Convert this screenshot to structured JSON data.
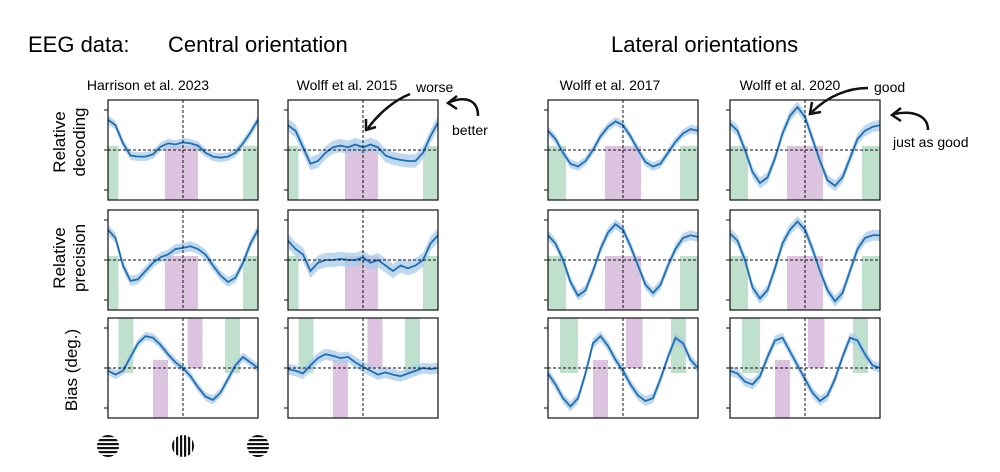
{
  "header": {
    "eeg_label": "EEG data:",
    "central_title": "Central orientation",
    "lateral_title": "Lateral orientations"
  },
  "row_labels": [
    [
      "Relative",
      "decoding"
    ],
    [
      "Relative",
      "precision"
    ],
    [
      "Bias (deg.)"
    ]
  ],
  "annotations": {
    "worse": "worse",
    "better": "better",
    "good": "good",
    "just_as_good": "just as good"
  },
  "colors": {
    "line": "#1f6fb4",
    "band": "#a9cbe8",
    "green": "#bfe0cc",
    "purple": "#dcc3e0",
    "axis": "#111111"
  },
  "stimuli": [
    "horizontal-grating-icon",
    "vertical-grating-icon",
    "horizontal-grating-icon"
  ],
  "chart_data": [
    {
      "type": "line",
      "title": "Harrison et al. 2023",
      "panels": [
        {
          "row": "decoding",
          "x": [
            0,
            0.05,
            0.1,
            0.15,
            0.2,
            0.25,
            0.3,
            0.35,
            0.4,
            0.45,
            0.5,
            0.55,
            0.6,
            0.65,
            0.7,
            0.75,
            0.8,
            0.85,
            0.9,
            0.95,
            1
          ],
          "y": [
            0.55,
            0.45,
            0.12,
            -0.1,
            -0.12,
            -0.12,
            -0.08,
            0.06,
            0.12,
            0.1,
            0.14,
            0.12,
            0.08,
            -0.05,
            -0.12,
            -0.14,
            -0.12,
            -0.05,
            0.12,
            0.32,
            0.55
          ],
          "band": 0.08,
          "green": [
            [
              0,
              0.07
            ],
            [
              0.9,
              1
            ]
          ],
          "purple": [
            [
              0.38,
              0.6
            ]
          ]
        },
        {
          "row": "precision",
          "x": [
            0,
            0.05,
            0.1,
            0.15,
            0.2,
            0.25,
            0.3,
            0.35,
            0.4,
            0.45,
            0.5,
            0.55,
            0.6,
            0.65,
            0.7,
            0.75,
            0.8,
            0.85,
            0.9,
            0.95,
            1
          ],
          "y": [
            0.55,
            0.4,
            -0.1,
            -0.38,
            -0.35,
            -0.2,
            -0.05,
            0.05,
            0.1,
            0.2,
            0.22,
            0.25,
            0.2,
            0.1,
            -0.1,
            -0.28,
            -0.4,
            -0.32,
            -0.05,
            0.3,
            0.55
          ],
          "band": 0.09,
          "green": [
            [
              0,
              0.07
            ],
            [
              0.9,
              1
            ]
          ],
          "purple": [
            [
              0.38,
              0.6
            ]
          ]
        },
        {
          "row": "bias",
          "x": [
            0,
            0.05,
            0.1,
            0.15,
            0.2,
            0.25,
            0.3,
            0.35,
            0.4,
            0.45,
            0.5,
            0.55,
            0.6,
            0.65,
            0.7,
            0.75,
            0.8,
            0.85,
            0.9,
            0.95,
            1
          ],
          "y": [
            -0.05,
            -0.12,
            -0.05,
            0.2,
            0.45,
            0.58,
            0.55,
            0.42,
            0.25,
            0.1,
            0.0,
            -0.15,
            -0.35,
            -0.52,
            -0.58,
            -0.45,
            -0.2,
            0.05,
            0.2,
            0.1,
            0.0
          ],
          "band": 0.08,
          "green": [
            [
              0.07,
              0.17
            ],
            [
              0.78,
              0.88
            ]
          ],
          "purple": [
            [
              0.3,
              0.4
            ],
            [
              0.53,
              0.63
            ]
          ]
        }
      ]
    },
    {
      "type": "line",
      "title": "Wolff et al. 2015",
      "panels": [
        {
          "row": "decoding",
          "x": [
            0,
            0.05,
            0.1,
            0.15,
            0.2,
            0.25,
            0.3,
            0.35,
            0.4,
            0.45,
            0.5,
            0.55,
            0.6,
            0.65,
            0.7,
            0.75,
            0.8,
            0.85,
            0.9,
            0.95,
            1
          ],
          "y": [
            0.45,
            0.35,
            0.05,
            -0.25,
            -0.2,
            -0.05,
            0.05,
            0.08,
            0.05,
            0.1,
            0.05,
            0.1,
            0.05,
            -0.1,
            -0.15,
            -0.18,
            -0.2,
            -0.2,
            -0.05,
            0.25,
            0.5
          ],
          "band": 0.12,
          "green": [
            [
              0,
              0.07
            ],
            [
              0.9,
              1
            ]
          ],
          "purple": [
            [
              0.38,
              0.6
            ]
          ]
        },
        {
          "row": "precision",
          "x": [
            0,
            0.05,
            0.1,
            0.15,
            0.2,
            0.25,
            0.3,
            0.35,
            0.4,
            0.45,
            0.5,
            0.55,
            0.6,
            0.65,
            0.7,
            0.75,
            0.8,
            0.85,
            0.9,
            0.95,
            1
          ],
          "y": [
            0.35,
            0.2,
            0.1,
            -0.2,
            -0.05,
            0.0,
            0.0,
            0.02,
            0.0,
            0.0,
            0.05,
            -0.05,
            0.0,
            -0.1,
            -0.2,
            -0.1,
            -0.15,
            -0.1,
            0.0,
            0.3,
            0.45
          ],
          "band": 0.13,
          "green": [
            [
              0,
              0.07
            ],
            [
              0.9,
              1
            ]
          ],
          "purple": [
            [
              0.38,
              0.6
            ]
          ]
        },
        {
          "row": "bias",
          "x": [
            0,
            0.05,
            0.1,
            0.15,
            0.2,
            0.25,
            0.3,
            0.35,
            0.4,
            0.45,
            0.5,
            0.55,
            0.6,
            0.65,
            0.7,
            0.75,
            0.8,
            0.85,
            0.9,
            0.95,
            1
          ],
          "y": [
            -0.02,
            -0.05,
            -0.1,
            0.05,
            0.18,
            0.25,
            0.22,
            0.18,
            0.2,
            0.1,
            0.02,
            -0.05,
            -0.12,
            -0.08,
            -0.12,
            -0.15,
            -0.1,
            -0.05,
            0.0,
            -0.02,
            0.0
          ],
          "band": 0.1,
          "green": [
            [
              0.07,
              0.17
            ],
            [
              0.78,
              0.88
            ]
          ],
          "purple": [
            [
              0.3,
              0.4
            ],
            [
              0.53,
              0.63
            ]
          ]
        }
      ]
    },
    {
      "type": "line",
      "title": "Wolff et al. 2017",
      "panels": [
        {
          "row": "decoding",
          "x": [
            0,
            0.05,
            0.1,
            0.15,
            0.2,
            0.25,
            0.3,
            0.35,
            0.4,
            0.45,
            0.5,
            0.55,
            0.6,
            0.65,
            0.7,
            0.75,
            0.8,
            0.85,
            0.9,
            0.95,
            1
          ],
          "y": [
            0.35,
            0.2,
            -0.05,
            -0.25,
            -0.3,
            -0.2,
            0.0,
            0.25,
            0.42,
            0.52,
            0.45,
            0.25,
            0.0,
            -0.22,
            -0.3,
            -0.25,
            -0.05,
            0.15,
            0.3,
            0.38,
            0.35
          ],
          "band": 0.08,
          "green": [
            [
              0,
              0.12
            ],
            [
              0.88,
              1
            ]
          ],
          "purple": [
            [
              0.38,
              0.62
            ]
          ]
        },
        {
          "row": "precision",
          "x": [
            0,
            0.05,
            0.1,
            0.15,
            0.2,
            0.25,
            0.3,
            0.35,
            0.4,
            0.45,
            0.5,
            0.55,
            0.6,
            0.65,
            0.7,
            0.75,
            0.8,
            0.85,
            0.9,
            0.95,
            1
          ],
          "y": [
            0.45,
            0.3,
            0.0,
            -0.4,
            -0.65,
            -0.55,
            -0.2,
            0.2,
            0.5,
            0.65,
            0.55,
            0.25,
            -0.1,
            -0.45,
            -0.6,
            -0.45,
            -0.1,
            0.2,
            0.4,
            0.45,
            0.42
          ],
          "band": 0.09,
          "green": [
            [
              0,
              0.12
            ],
            [
              0.88,
              1
            ]
          ],
          "purple": [
            [
              0.38,
              0.62
            ]
          ]
        },
        {
          "row": "bias",
          "x": [
            0,
            0.05,
            0.1,
            0.15,
            0.2,
            0.25,
            0.3,
            0.35,
            0.4,
            0.45,
            0.5,
            0.55,
            0.6,
            0.65,
            0.7,
            0.75,
            0.8,
            0.85,
            0.9,
            0.95,
            1
          ],
          "y": [
            -0.1,
            -0.3,
            -0.55,
            -0.7,
            -0.55,
            -0.1,
            0.45,
            0.58,
            0.4,
            0.15,
            -0.05,
            -0.3,
            -0.5,
            -0.6,
            -0.55,
            -0.2,
            0.2,
            0.55,
            0.45,
            0.15,
            0.0
          ],
          "band": 0.09,
          "green": [
            [
              0.08,
              0.2
            ],
            [
              0.82,
              0.92
            ]
          ],
          "purple": [
            [
              0.3,
              0.4
            ],
            [
              0.52,
              0.63
            ]
          ]
        }
      ]
    },
    {
      "type": "line",
      "title": "Wolff et al. 2020",
      "panels": [
        {
          "row": "decoding",
          "x": [
            0,
            0.05,
            0.1,
            0.15,
            0.2,
            0.25,
            0.3,
            0.35,
            0.4,
            0.45,
            0.5,
            0.55,
            0.6,
            0.65,
            0.7,
            0.75,
            0.8,
            0.85,
            0.9,
            0.95,
            1
          ],
          "y": [
            0.48,
            0.35,
            0.0,
            -0.4,
            -0.6,
            -0.5,
            -0.15,
            0.3,
            0.62,
            0.78,
            0.6,
            0.2,
            -0.2,
            -0.55,
            -0.65,
            -0.5,
            -0.15,
            0.2,
            0.35,
            0.42,
            0.45
          ],
          "band": 0.1,
          "green": [
            [
              0,
              0.12
            ],
            [
              0.88,
              1
            ]
          ],
          "purple": [
            [
              0.38,
              0.62
            ]
          ]
        },
        {
          "row": "precision",
          "x": [
            0,
            0.05,
            0.1,
            0.15,
            0.2,
            0.25,
            0.3,
            0.35,
            0.4,
            0.45,
            0.5,
            0.55,
            0.6,
            0.65,
            0.7,
            0.75,
            0.8,
            0.85,
            0.9,
            0.95,
            1
          ],
          "y": [
            0.48,
            0.35,
            0.0,
            -0.5,
            -0.7,
            -0.55,
            -0.15,
            0.3,
            0.55,
            0.7,
            0.55,
            0.2,
            -0.2,
            -0.55,
            -0.75,
            -0.6,
            -0.2,
            0.2,
            0.4,
            0.45,
            0.45
          ],
          "band": 0.1,
          "green": [
            [
              0,
              0.12
            ],
            [
              0.88,
              1
            ]
          ],
          "purple": [
            [
              0.38,
              0.62
            ]
          ]
        },
        {
          "row": "bias",
          "x": [
            0,
            0.05,
            0.1,
            0.15,
            0.2,
            0.25,
            0.3,
            0.35,
            0.4,
            0.45,
            0.5,
            0.55,
            0.6,
            0.65,
            0.7,
            0.75,
            0.8,
            0.85,
            0.9,
            0.95,
            1
          ],
          "y": [
            -0.05,
            -0.1,
            -0.25,
            -0.3,
            -0.15,
            0.2,
            0.5,
            0.55,
            0.3,
            0.05,
            -0.2,
            -0.45,
            -0.6,
            -0.5,
            -0.2,
            0.2,
            0.55,
            0.5,
            0.25,
            0.05,
            0.0
          ],
          "band": 0.09,
          "green": [
            [
              0.08,
              0.2
            ],
            [
              0.82,
              0.92
            ]
          ],
          "purple": [
            [
              0.3,
              0.4
            ],
            [
              0.52,
              0.63
            ]
          ]
        }
      ]
    }
  ]
}
